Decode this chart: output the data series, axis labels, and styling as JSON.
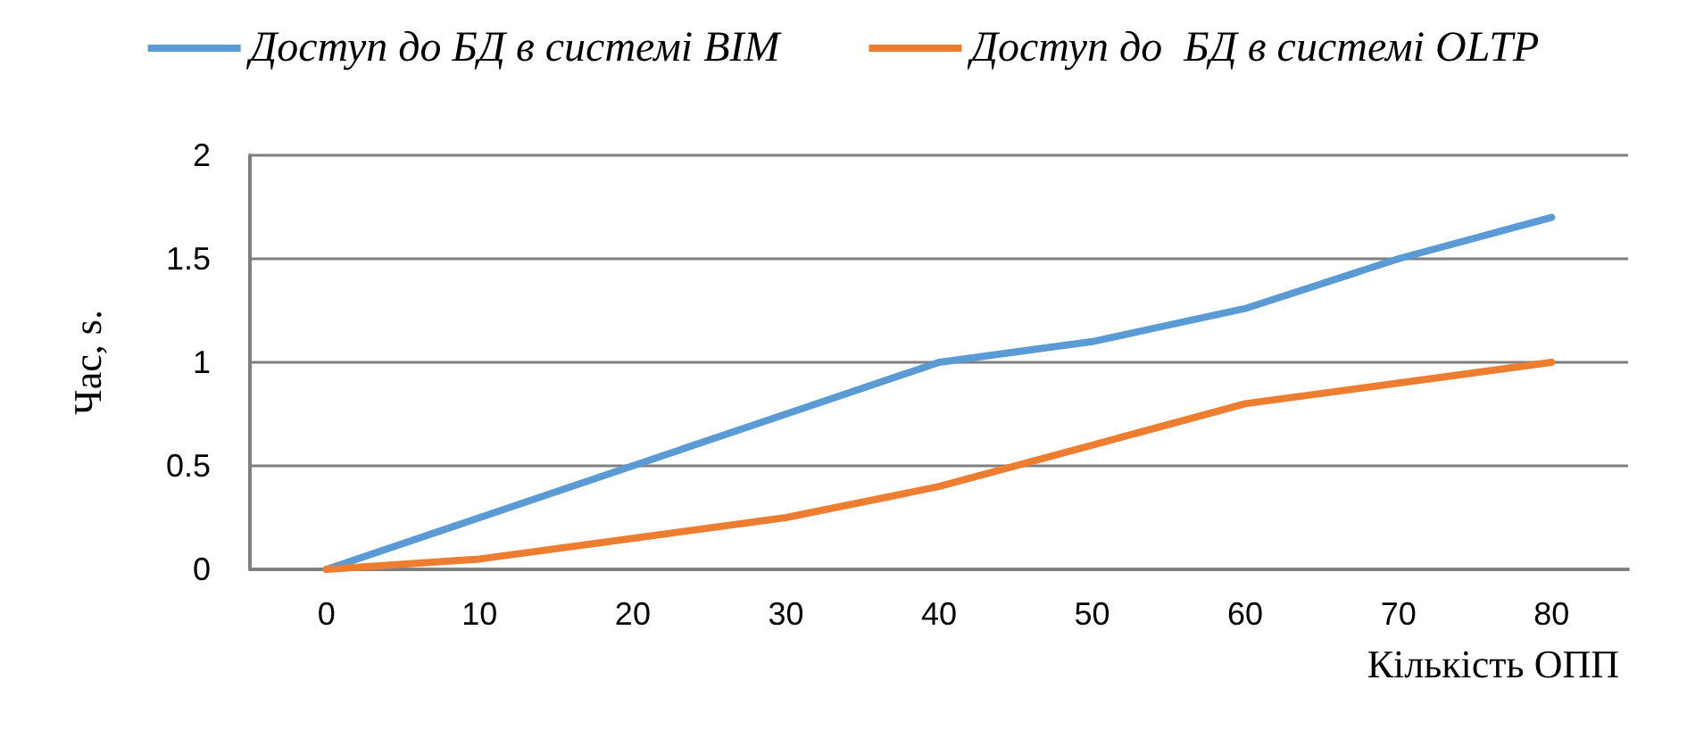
{
  "chart_data": {
    "type": "line",
    "xlabel": "Кількість ОПП",
    "ylabel": "Час, s.",
    "categories": [
      "0",
      "10",
      "20",
      "30",
      "40",
      "50",
      "60",
      "70",
      "80"
    ],
    "series": [
      {
        "name": "Доступ до БД в системі BIM",
        "color": "#5b9bd5",
        "values": [
          0,
          0.25,
          0.5,
          0.75,
          1,
          1.1,
          1.26,
          1.5,
          1.7
        ]
      },
      {
        "name": "Доступ до  БД в системі OLTP",
        "color": "#ed7d31",
        "values": [
          0,
          0.05,
          0.15,
          0.25,
          0.4,
          0.6,
          0.8,
          0.9,
          1
        ]
      }
    ],
    "ylim": [
      0,
      2
    ],
    "yticks": [
      0,
      0.5,
      1,
      1.5,
      2
    ],
    "grid": "y",
    "legend": "top",
    "marker": "none",
    "line_style": "solid"
  }
}
